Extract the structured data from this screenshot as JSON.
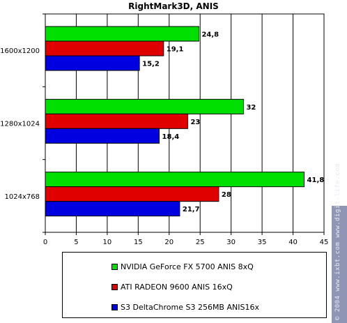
{
  "chart_data": {
    "type": "bar",
    "orientation": "horizontal",
    "title": "RightMark3D, ANIS",
    "categories": [
      "1600x1200",
      "1280x1024",
      "1024x768"
    ],
    "series": [
      {
        "name": "NVIDIA GeForce FX 5700 ANIS 8xQ",
        "color": "#00e000",
        "values": [
          24.8,
          32,
          41.8
        ],
        "labels": [
          "24,8",
          "32",
          "41,8"
        ]
      },
      {
        "name": "ATI RADEON 9600 ANIS 16xQ",
        "color": "#e00000",
        "values": [
          19.1,
          23,
          28
        ],
        "labels": [
          "19,1",
          "23",
          "28"
        ]
      },
      {
        "name": "S3 DeltaChrome S3 256MB ANIS16x",
        "color": "#0000e0",
        "values": [
          15.2,
          18.4,
          21.7
        ],
        "labels": [
          "15,2",
          "18,4",
          "21,7"
        ]
      }
    ],
    "xlim": [
      0,
      45
    ],
    "xticks": [
      0,
      5,
      10,
      15,
      20,
      25,
      30,
      35,
      40,
      45
    ],
    "grid": true,
    "legend_position": "bottom"
  },
  "watermark": "© 2004 www.ixbt.com  www.digit-life.com"
}
